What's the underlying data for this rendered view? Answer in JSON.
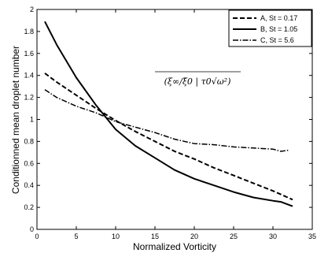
{
  "chart_data": {
    "type": "line",
    "title": "",
    "xlabel": "Normalized Vorticity",
    "ylabel": "Conditionned mean droplet number",
    "xlim": [
      0,
      35
    ],
    "ylim": [
      0,
      2
    ],
    "xticks": [
      0,
      5,
      10,
      15,
      20,
      25,
      30,
      35
    ],
    "yticks": [
      0,
      0.2,
      0.4,
      0.6,
      0.8,
      1,
      1.2,
      1.4,
      1.6,
      1.8,
      2
    ],
    "xtick_labels": [
      "0",
      "5",
      "10",
      "15",
      "20",
      "25",
      "30",
      "35"
    ],
    "ytick_labels": [
      "0",
      "0.2",
      "0.4",
      "0.6",
      "0.8",
      "1",
      "1.2",
      "1.4",
      "1.6",
      "1.8",
      "2"
    ],
    "grid": false,
    "legend_position": "top-right",
    "annotation": "(ξ∞/ξ̄0 | τ0√ω²)",
    "series": [
      {
        "name": "A, St = 0.17",
        "style": "dashed",
        "x": [
          1,
          2.5,
          5,
          7.5,
          10,
          12.5,
          15,
          17.5,
          20,
          22.5,
          25,
          27.5,
          30,
          32.5
        ],
        "y": [
          1.42,
          1.34,
          1.22,
          1.1,
          0.99,
          0.89,
          0.8,
          0.71,
          0.64,
          0.56,
          0.49,
          0.42,
          0.35,
          0.27
        ]
      },
      {
        "name": "B, St = 1.05",
        "style": "solid",
        "x": [
          1,
          2.5,
          5,
          7.5,
          10,
          12.5,
          15,
          17.5,
          20,
          22.5,
          25,
          27.5,
          30,
          31,
          32.5
        ],
        "y": [
          1.89,
          1.68,
          1.38,
          1.13,
          0.91,
          0.76,
          0.65,
          0.54,
          0.46,
          0.4,
          0.34,
          0.29,
          0.26,
          0.25,
          0.21
        ]
      },
      {
        "name": "C, St = 5.6",
        "style": "dashdot",
        "x": [
          1,
          2.5,
          5,
          7.5,
          10,
          12.5,
          15,
          17.5,
          20,
          22.5,
          25,
          27.5,
          30,
          31,
          32
        ],
        "y": [
          1.27,
          1.2,
          1.12,
          1.06,
          0.98,
          0.93,
          0.88,
          0.82,
          0.78,
          0.77,
          0.75,
          0.74,
          0.73,
          0.71,
          0.72
        ]
      }
    ]
  }
}
